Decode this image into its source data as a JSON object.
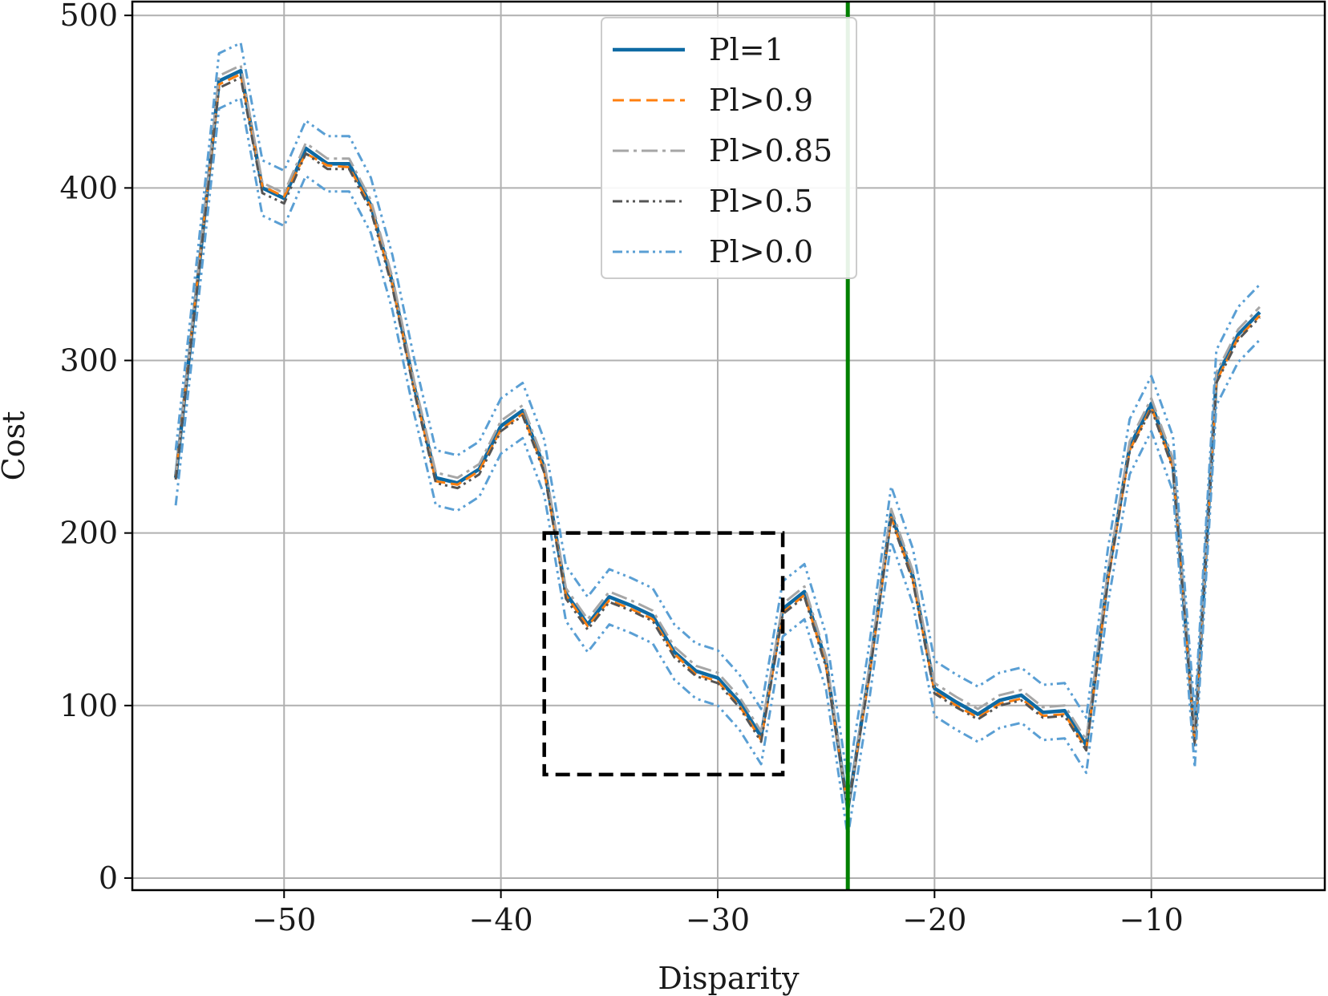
{
  "chart_data": {
    "type": "line",
    "xlabel": "Disparity",
    "ylabel": "Cost",
    "xlim": [
      -57,
      -2
    ],
    "ylim": [
      -7,
      508
    ],
    "xticks": [
      -50,
      -40,
      -30,
      -20,
      -10
    ],
    "xtick_labels": [
      "−50",
      "−40",
      "−30",
      "−20",
      "−10"
    ],
    "yticks": [
      0,
      100,
      200,
      300,
      400,
      500
    ],
    "ytick_labels": [
      "0",
      "100",
      "200",
      "300",
      "400",
      "500"
    ],
    "grid": true,
    "legend_position": "top-center",
    "x": [
      -55,
      -54,
      -53,
      -52,
      -51,
      -50,
      -49,
      -48,
      -47,
      -46,
      -45,
      -44,
      -43,
      -42,
      -41,
      -40,
      -39,
      -38,
      -37,
      -36,
      -35,
      -34,
      -33,
      -32,
      -31,
      -30,
      -29,
      -28,
      -27,
      -26,
      -25,
      -24,
      -23,
      -22,
      -21,
      -20,
      -19,
      -18,
      -17,
      -16,
      -15,
      -14,
      -13,
      -12,
      -11,
      -10,
      -9,
      -8,
      -7,
      -6,
      -5
    ],
    "series": [
      {
        "name": "Pl=1",
        "color": "#0e6aa4",
        "style": "solid",
        "values": [
          232,
          345,
          462,
          468,
          400,
          394,
          423,
          414,
          414,
          390,
          345,
          285,
          232,
          229,
          237,
          262,
          271,
          238,
          165,
          147,
          163,
          158,
          152,
          131,
          120,
          116,
          102,
          82,
          156,
          166,
          125,
          40,
          120,
          211,
          175,
          110,
          102,
          95,
          103,
          106,
          96,
          97,
          77,
          175,
          250,
          275,
          240,
          80,
          290,
          315,
          328
        ]
      },
      {
        "name": "Pl>0.9",
        "color": "#ff7f0e",
        "style": "dashed",
        "values": [
          233,
          346,
          460,
          466,
          401,
          395,
          420,
          413,
          412,
          389,
          344,
          284,
          230,
          228,
          236,
          260,
          269,
          236,
          164,
          146,
          161,
          156,
          150,
          130,
          118,
          114,
          100,
          80,
          154,
          164,
          123,
          40,
          118,
          209,
          173,
          108,
          100,
          93,
          101,
          104,
          94,
          95,
          75,
          173,
          248,
          273,
          238,
          78,
          288,
          313,
          326
        ]
      },
      {
        "name": "Pl>0.85",
        "color": "#a6a6a6",
        "style": "dashdot",
        "values": [
          234,
          347,
          465,
          471,
          403,
          397,
          426,
          417,
          417,
          393,
          348,
          288,
          235,
          232,
          240,
          265,
          274,
          241,
          168,
          150,
          166,
          161,
          155,
          134,
          123,
          119,
          105,
          85,
          159,
          169,
          128,
          40,
          123,
          214,
          178,
          113,
          105,
          98,
          106,
          109,
          99,
          100,
          80,
          178,
          253,
          278,
          243,
          83,
          293,
          318,
          331
        ]
      },
      {
        "name": "Pl>0.5",
        "color": "#555555",
        "style": "dashdotdot",
        "values": [
          231,
          343,
          458,
          464,
          397,
          391,
          420,
          411,
          411,
          387,
          342,
          282,
          229,
          226,
          234,
          259,
          268,
          235,
          162,
          144,
          160,
          155,
          149,
          128,
          117,
          113,
          99,
          79,
          153,
          163,
          122,
          40,
          117,
          208,
          172,
          107,
          99,
          92,
          100,
          103,
          93,
          94,
          74,
          172,
          247,
          272,
          237,
          77,
          287,
          312,
          325
        ]
      },
      {
        "name": "Pl>0.0",
        "color": "#5a9fd4",
        "style": "dashdotdot",
        "values": [
          232,
          345,
          462,
          468,
          400,
          394,
          423,
          414,
          414,
          390,
          345,
          285,
          232,
          229,
          237,
          262,
          271,
          238,
          165,
          147,
          163,
          158,
          152,
          131,
          120,
          116,
          102,
          82,
          156,
          166,
          125,
          40,
          120,
          211,
          175,
          110,
          102,
          95,
          103,
          106,
          96,
          97,
          77,
          175,
          250,
          275,
          240,
          80,
          290,
          315,
          328
        ],
        "spread": 16
      }
    ],
    "vertical_line": {
      "x": -24,
      "color": "#008000"
    },
    "highlight_box": {
      "x_range": [
        -38,
        -27
      ],
      "y_range": [
        60,
        200
      ],
      "color": "#000000",
      "style": "dashed"
    }
  }
}
